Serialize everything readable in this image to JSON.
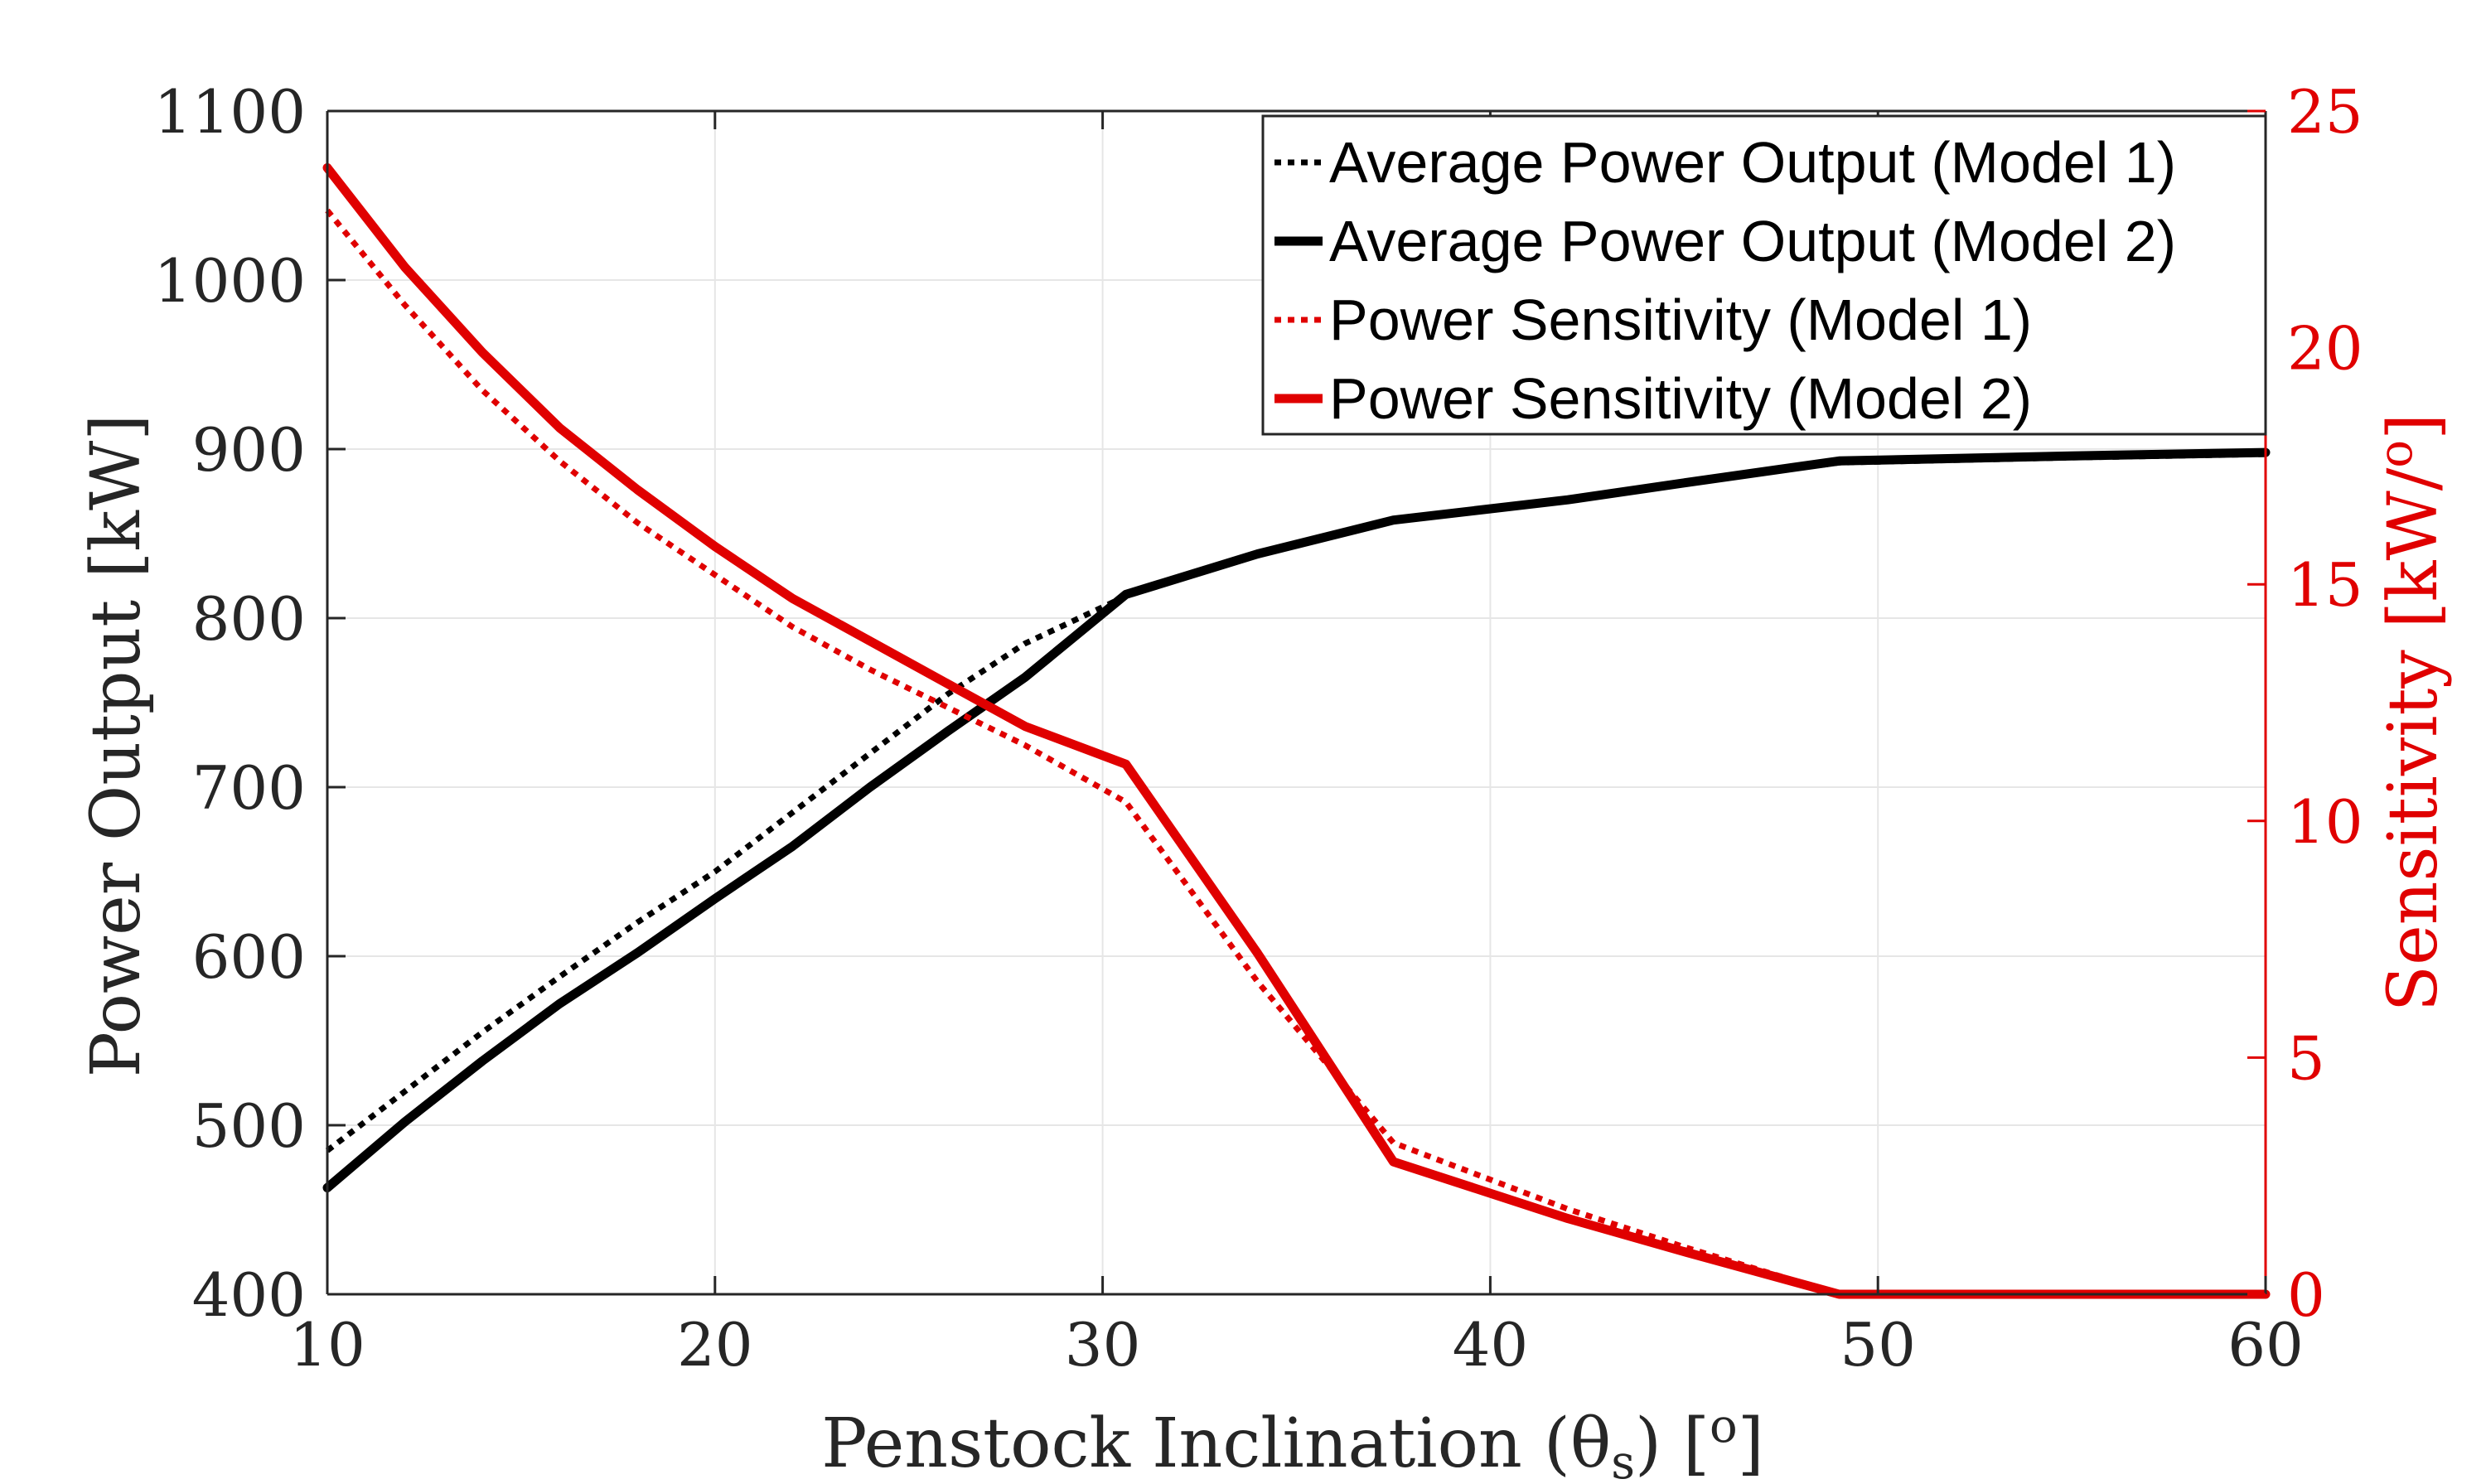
{
  "chart_data": {
    "type": "line",
    "xlabel": "Penstock Inclination (θ",
    "xlabel_sub": "s",
    "xlabel_tail": ") [",
    "xlabel_sup": "o",
    "xlabel_end": "]",
    "ylabel": "Power Output [kW]",
    "y2label": "Sensitivity [kW/",
    "y2label_sup": "o",
    "y2label_end": "]",
    "xlim": [
      10,
      60
    ],
    "ylim": [
      400,
      1100
    ],
    "y2lim": [
      0,
      25
    ],
    "x_ticks": [
      "10",
      "20",
      "30",
      "40",
      "50",
      "60"
    ],
    "y_ticks": [
      "400",
      "500",
      "600",
      "700",
      "800",
      "900",
      "1000",
      "1100"
    ],
    "y2_ticks": [
      "0",
      "5",
      "10",
      "15",
      "20",
      "25"
    ],
    "grid": true,
    "legend_position": "top-right",
    "colors": {
      "left_axis": "#262626",
      "right_axis": "#e00000",
      "black": "#000000",
      "red": "#e00000",
      "grid": "#e6e6e6"
    },
    "series": [
      {
        "name": "Average Power Output (Model 1)",
        "axis": "left",
        "color": "#000000",
        "style": "dotted",
        "x": [
          10,
          12,
          14,
          16,
          18,
          20,
          22,
          24,
          26,
          28,
          30.6,
          34,
          37.5,
          42,
          45,
          49,
          55,
          60
        ],
        "y": [
          485,
          520,
          555,
          588,
          620,
          650,
          685,
          720,
          755,
          785,
          813,
          838,
          858,
          870,
          880,
          892,
          895,
          897
        ]
      },
      {
        "name": "Average Power Output (Model 2)",
        "axis": "left",
        "color": "#000000",
        "style": "solid",
        "x": [
          10,
          12,
          14,
          16,
          18,
          20,
          22,
          24,
          26,
          28,
          30.6,
          34,
          37.5,
          42,
          45,
          49,
          55,
          60
        ],
        "y": [
          463,
          502,
          538,
          572,
          602,
          634,
          665,
          700,
          733,
          765,
          814,
          838,
          858,
          870,
          880,
          893,
          896,
          898
        ]
      },
      {
        "name": "Power Sensitivity (Model 1)",
        "axis": "right",
        "color": "#e00000",
        "style": "dotted",
        "x": [
          10,
          12,
          14,
          16,
          18,
          20,
          22,
          24,
          26,
          28,
          30.6,
          34,
          37.5,
          42,
          45,
          49,
          55,
          60
        ],
        "y": [
          22.9,
          20.9,
          19.1,
          17.6,
          16.3,
          15.2,
          14.1,
          13.2,
          12.4,
          11.6,
          10.4,
          6.6,
          3.2,
          1.8,
          1.0,
          0,
          0,
          0
        ]
      },
      {
        "name": "Power Sensitivity (Model 2)",
        "axis": "right",
        "color": "#e00000",
        "style": "solid",
        "x": [
          10,
          12,
          14,
          16,
          18,
          20,
          22,
          24,
          26,
          28,
          30.6,
          34,
          37.5,
          42,
          45,
          49,
          55,
          60
        ],
        "y": [
          23.8,
          21.7,
          19.9,
          18.3,
          17.0,
          15.8,
          14.7,
          13.8,
          12.9,
          12.0,
          11.2,
          7.2,
          2.8,
          1.6,
          0.9,
          0,
          0,
          0
        ]
      }
    ]
  }
}
